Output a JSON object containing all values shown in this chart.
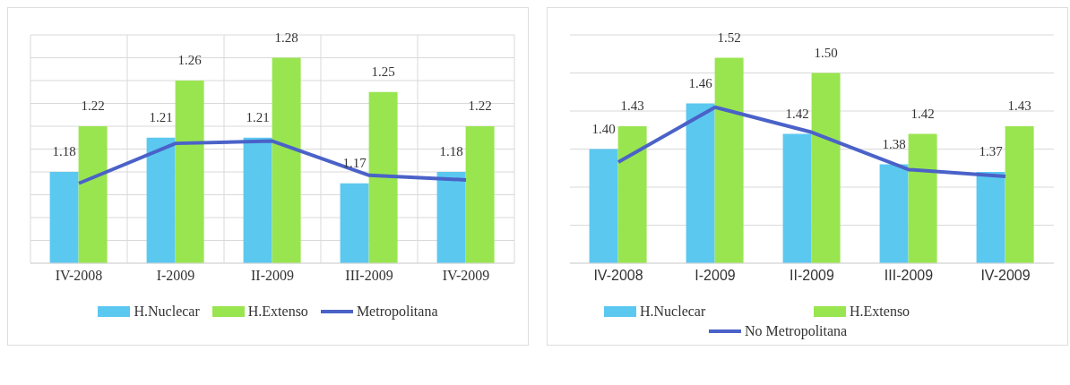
{
  "chart_data": [
    {
      "type": "bar",
      "categories": [
        "IV-2008",
        "I-2009",
        "II-2009",
        "III-2009",
        "IV-2009"
      ],
      "ylim": [
        1.1,
        1.3
      ],
      "yticks": [
        {
          "value": 1.1,
          "label": null
        },
        {
          "value": 1.12,
          "label": null
        },
        {
          "value": 1.14,
          "label": null
        },
        {
          "value": 1.16,
          "label": null
        },
        {
          "value": 1.18,
          "label": null
        },
        {
          "value": 1.2,
          "label": null
        },
        {
          "value": 1.22,
          "label": null
        },
        {
          "value": 1.24,
          "label": null
        },
        {
          "value": 1.26,
          "label": null
        },
        {
          "value": 1.28,
          "label": null
        },
        {
          "value": 1.3,
          "label": null
        }
      ],
      "tick_labels": "x",
      "grid": true,
      "legend": "bottom",
      "series": [
        {
          "name": "H.Nuclecar",
          "color": "#5bc8f0",
          "values": [
            1.18,
            1.21,
            1.21,
            1.17,
            1.18
          ],
          "value_labels": [
            "1.18",
            "1.21",
            "1.21",
            "1.17",
            "1.18"
          ]
        },
        {
          "name": "H.Extenso",
          "color": "#99e550",
          "values": [
            1.22,
            1.26,
            1.28,
            1.25,
            1.22
          ],
          "value_labels": [
            "1.22",
            "1.26",
            "1.28",
            "1.25",
            "1.22"
          ]
        },
        {
          "name": "Metropolitana",
          "type": "line",
          "color": "#4a62c8",
          "values": [
            1.17,
            1.205,
            1.207,
            1.177,
            1.173
          ]
        }
      ]
    },
    {
      "type": "bar",
      "categories": [
        "IV-2008",
        "I-2009",
        "II-2009",
        "III-2009",
        "IV-2009"
      ],
      "ylim": [
        1.25,
        1.55
      ],
      "yticks": [
        {
          "value": 1.25,
          "label": null
        },
        {
          "value": 1.3,
          "label": null
        },
        {
          "value": 1.35,
          "label": null
        },
        {
          "value": 1.4,
          "label": null
        },
        {
          "value": 1.45,
          "label": null
        },
        {
          "value": 1.5,
          "label": null
        },
        {
          "value": 1.55,
          "label": null
        }
      ],
      "tick_labels": "x",
      "grid": "y",
      "legend": "bottom",
      "series": [
        {
          "name": "H.Nuclecar",
          "color": "#5bc8f0",
          "values": [
            1.4,
            1.46,
            1.42,
            1.38,
            1.37
          ],
          "value_labels": [
            "1.40",
            "1.46",
            "1.42",
            "1.38",
            "1.37"
          ]
        },
        {
          "name": "H.Extenso",
          "color": "#99e550",
          "values": [
            1.43,
            1.52,
            1.5,
            1.42,
            1.43
          ],
          "value_labels": [
            "1.43",
            "1.52",
            "1.50",
            "1.42",
            "1.43"
          ]
        },
        {
          "name": "No Metropolitana",
          "type": "line",
          "color": "#4a62c8",
          "values": [
            1.383,
            1.455,
            1.422,
            1.373,
            1.364
          ]
        }
      ]
    }
  ]
}
